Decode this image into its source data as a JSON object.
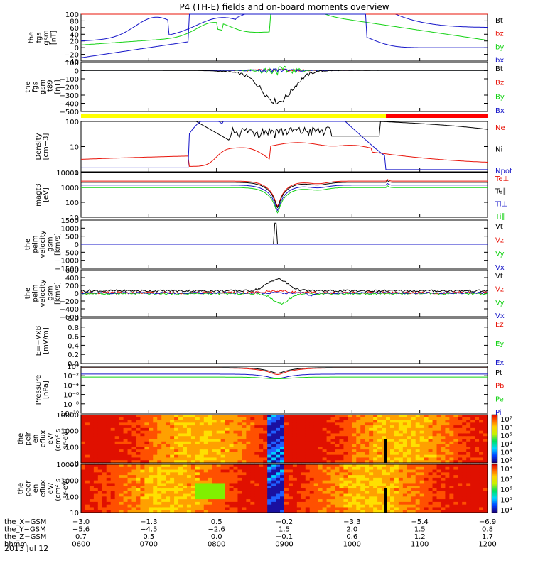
{
  "title": "P4 (TH-E) fields and on-board moments overview",
  "date_label": "2013 Jul 12",
  "colors": {
    "black": "#000000",
    "red": "#e8140a",
    "green": "#14d214",
    "blue": "#1414c8",
    "yellow": "#ffff00",
    "bar_red": "#ff0000"
  },
  "status_bar": {
    "yellow_until": "10:30",
    "red_from": "10:30"
  },
  "chart_data": [
    {
      "type": "line",
      "id": "fgs",
      "ylabel": [
        "the",
        "fgs",
        "gsm",
        "[nT]"
      ],
      "ylim": [
        -40,
        100
      ],
      "yticks": [
        "100",
        "80",
        "60",
        "40",
        "20",
        "0",
        "−20",
        "−40"
      ],
      "legend": [
        {
          "name": "Bt",
          "color": "black"
        },
        {
          "name": "bz",
          "color": "red"
        },
        {
          "name": "by",
          "color": "green"
        },
        {
          "name": "bx",
          "color": "blue"
        }
      ]
    },
    {
      "type": "line",
      "id": "fgs_zoom",
      "ylabel": [
        "the",
        "fgs",
        "gsm",
        "-t89",
        "[nT]"
      ],
      "ylim": [
        -550,
        100
      ],
      "yticks": [
        "100",
        "0",
        "−100",
        "−200",
        "−300",
        "−400",
        "−500"
      ],
      "legend": [
        {
          "name": "Bt",
          "color": "black"
        },
        {
          "name": "Bz",
          "color": "red"
        },
        {
          "name": "By",
          "color": "green"
        },
        {
          "name": "Bx",
          "color": "blue"
        }
      ]
    },
    {
      "type": "line",
      "id": "density",
      "ylabel": [
        "Density",
        "[cm−3]"
      ],
      "yscale": "log",
      "ylim": [
        0.3,
        200
      ],
      "yticks": [
        "100",
        "10",
        "1"
      ],
      "legend": [
        {
          "name": "Ne",
          "color": "red"
        },
        {
          "name": "Ni",
          "color": "black"
        },
        {
          "name": "Npot",
          "color": "blue"
        }
      ]
    },
    {
      "type": "line",
      "id": "temperature",
      "ylabel": [
        "magt3",
        "[eV]"
      ],
      "yscale": "log",
      "ylim": [
        2,
        15000
      ],
      "yticks": [
        "10000",
        "1000",
        "100",
        "10"
      ],
      "legend": [
        {
          "name": "Te⊥",
          "color": "red"
        },
        {
          "name": "Te∥",
          "color": "black"
        },
        {
          "name": "Ti⊥",
          "color": "blue"
        },
        {
          "name": "Ti∥",
          "color": "green"
        }
      ]
    },
    {
      "type": "line",
      "id": "peim_vel_1",
      "ylabel": [
        "the",
        "peim",
        "velocity",
        "gsm",
        "[km/s]"
      ],
      "ylim": [
        -1600,
        1600
      ],
      "yticks": [
        "1500",
        "1000",
        "500",
        "0",
        "−500",
        "−1000",
        "−1500"
      ],
      "legend": [
        {
          "name": "Vt",
          "color": "black"
        },
        {
          "name": "Vz",
          "color": "red"
        },
        {
          "name": "Vy",
          "color": "green"
        },
        {
          "name": "Vx",
          "color": "blue"
        }
      ]
    },
    {
      "type": "line",
      "id": "peim_vel_2",
      "ylabel": [
        "the",
        "peim",
        "velocity",
        "gsm",
        "[km/s]"
      ],
      "ylim": [
        -600,
        600
      ],
      "yticks": [
        "600",
        "400",
        "200",
        "0",
        "−200",
        "−400",
        "−600"
      ],
      "legend": [
        {
          "name": "Vt",
          "color": "black"
        },
        {
          "name": "Vz",
          "color": "red"
        },
        {
          "name": "Vy",
          "color": "green"
        },
        {
          "name": "Vx",
          "color": "blue"
        }
      ]
    },
    {
      "type": "line",
      "id": "efield",
      "ylabel": [
        "E=−VxB",
        "[mV/m]"
      ],
      "ylim": [
        0,
        1
      ],
      "yticks": [
        "1.0",
        "0.8",
        "0.6",
        "0.4",
        "0.2",
        "0.0"
      ],
      "legend": [
        {
          "name": "Ez",
          "color": "red"
        },
        {
          "name": "Ey",
          "color": "green"
        },
        {
          "name": "Ex",
          "color": "blue"
        }
      ]
    },
    {
      "type": "line",
      "id": "pressure",
      "ylabel": [
        "Pressure",
        "[nPa]"
      ],
      "yscale": "log",
      "ylim": [
        1e-10,
        10
      ],
      "yticks": [
        "10⁰",
        "10⁻²",
        "10⁻⁴",
        "10⁻⁶",
        "10⁻⁸",
        "10⁻¹⁰"
      ],
      "legend": [
        {
          "name": "Pt",
          "color": "black"
        },
        {
          "name": "Pb",
          "color": "red"
        },
        {
          "name": "Pe",
          "color": "green"
        },
        {
          "name": "Pi",
          "color": "blue"
        }
      ]
    },
    {
      "type": "heatmap",
      "id": "peir",
      "ylabel": [
        "the",
        "peir",
        "en",
        "eflux",
        "eV/",
        "(cm²-s-",
        "sr-eV)"
      ],
      "yscale": "log",
      "yticks": [
        "10000",
        "1000",
        "100",
        "10"
      ],
      "colorbar": [
        "10⁷",
        "10⁶",
        "10⁵",
        "10⁴",
        "10³",
        "10²"
      ]
    },
    {
      "type": "heatmap",
      "id": "peer",
      "ylabel": [
        "the",
        "peer",
        "en",
        "eflux",
        "eV/",
        "(cm²-s-",
        "sr-eV)"
      ],
      "yscale": "log",
      "yticks": [
        "10000",
        "1000",
        "100",
        "10"
      ],
      "colorbar": [
        "10⁸",
        "10⁷",
        "10⁶",
        "10⁵",
        "10⁴"
      ]
    }
  ],
  "x_axis": {
    "rows": [
      {
        "label": "the_X−GSM",
        "values": [
          "−3.0",
          "−1.3",
          "0.5",
          "−0.2",
          "−3.3",
          "−5.4",
          "−6.9"
        ]
      },
      {
        "label": "the_Y−GSM",
        "values": [
          "−5.6",
          "−4.5",
          "−2.6",
          "1.5",
          "2.0",
          "1.5",
          "0.8"
        ]
      },
      {
        "label": "the_Z−GSM",
        "values": [
          "0.7",
          "0.5",
          "0.0",
          "−0.1",
          "0.6",
          "1.2",
          "1.7"
        ]
      },
      {
        "label": "hhmm",
        "values": [
          "0600",
          "0700",
          "0800",
          "0900",
          "1000",
          "1100",
          "1200"
        ]
      }
    ]
  }
}
